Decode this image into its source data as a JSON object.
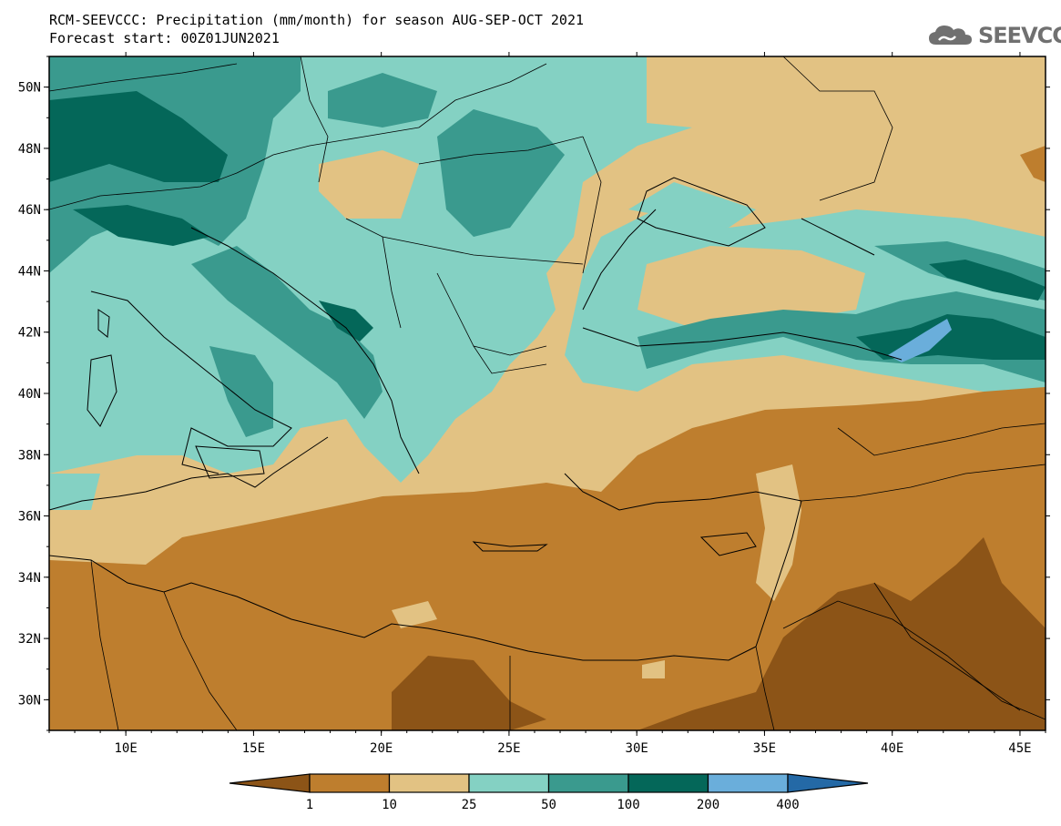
{
  "header": {
    "title_line1": "RCM-SEEVCCC: Precipitation (mm/month) for season AUG-SEP-OCT 2021",
    "title_line2": "Forecast start: 00Z01JUN2021",
    "logo_text": "SEEVCCC",
    "logo_icon": "cloud-icon"
  },
  "map": {
    "lat_labels": [
      "50N",
      "48N",
      "46N",
      "44N",
      "42N",
      "40N",
      "38N",
      "36N",
      "34N",
      "32N",
      "30N"
    ],
    "lon_labels": [
      "10E",
      "15E",
      "20E",
      "25E",
      "30E",
      "35E",
      "40E",
      "45E"
    ],
    "lat_range": [
      29,
      51
    ],
    "lon_range": [
      7,
      46
    ]
  },
  "colorbar": {
    "labels": [
      "1",
      "10",
      "25",
      "50",
      "100",
      "200",
      "400"
    ],
    "colors": [
      "#8c5417",
      "#be7e2e",
      "#e2c283",
      "#84d1c3",
      "#3a9a8e",
      "#046759",
      "#6aaedb",
      "#2469a6"
    ]
  }
}
